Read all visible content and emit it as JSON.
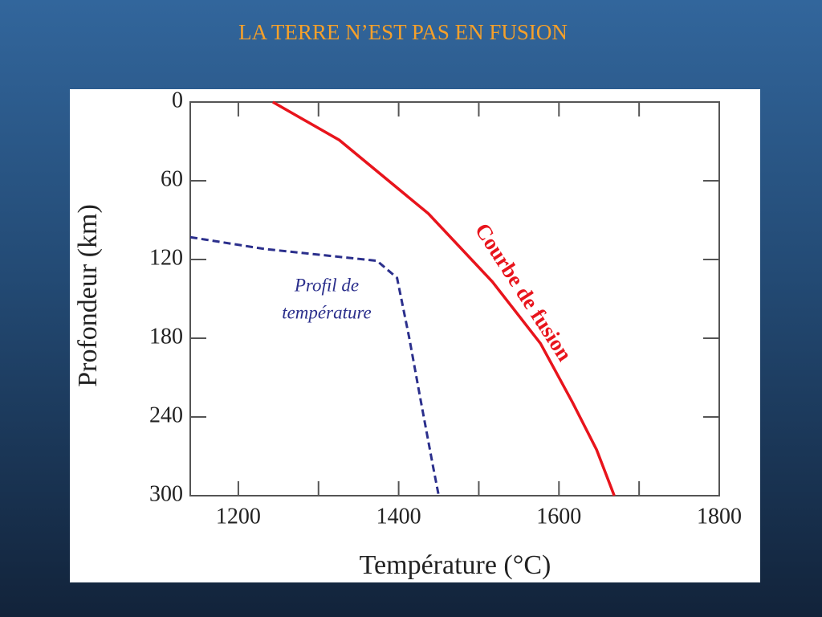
{
  "chart_data": {
    "type": "line",
    "title": "LA  TERRE  N’EST  PAS  EN  FUSION",
    "x_label": "Température  (°C)",
    "y_label": "Profondeur (km)",
    "xlim": [
      1140,
      1800
    ],
    "xticks": [
      1200,
      1400,
      1600,
      1800
    ],
    "xminor": [
      1300,
      1500,
      1700
    ],
    "ylim": [
      300,
      0
    ],
    "yticks": [
      0,
      60,
      120,
      180,
      240,
      300
    ],
    "series": [
      {
        "label": [
          "Courbe  de  fusion"
        ],
        "color": "#e8141c",
        "dash": false,
        "x": [
          1243,
          1326,
          1437,
          1517,
          1577,
          1617,
          1647,
          1669
        ],
        "values": [
          0,
          29,
          85,
          137,
          184,
          229,
          265,
          300
        ]
      },
      {
        "label": [
          "Profil de",
          "température"
        ],
        "color": "#2b2f8c",
        "dash": true,
        "x": [
          1140,
          1233,
          1373,
          1398,
          1413,
          1428,
          1443,
          1450
        ],
        "values": [
          103,
          112,
          121,
          134,
          179,
          229,
          278,
          300
        ]
      }
    ]
  }
}
